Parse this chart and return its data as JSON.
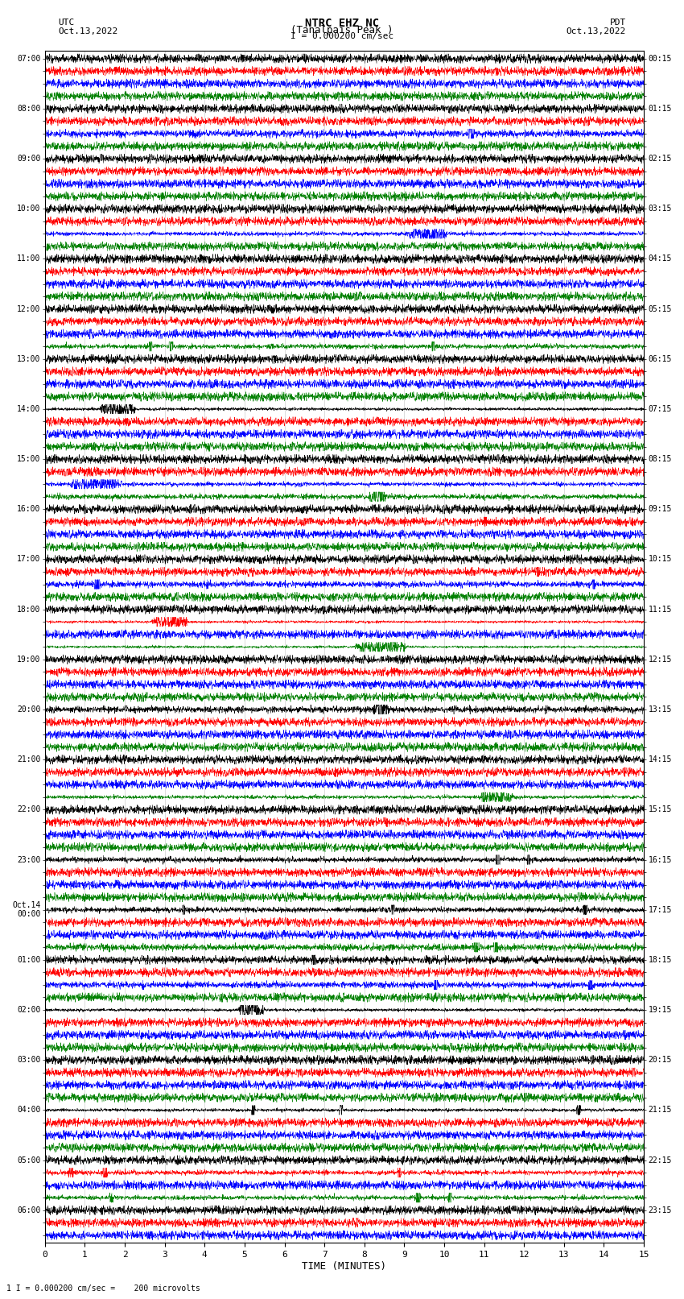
{
  "title_line1": "NTRC EHZ NC",
  "title_line2": "(Tanalpais Peak )",
  "scale_label": "I = 0.000200 cm/sec",
  "left_header": "UTC\nOct.13,2022",
  "right_header": "PDT\nOct.13,2022",
  "bottom_label": "TIME (MINUTES)",
  "bottom_note": "1 I = 0.000200 cm/sec =    200 microvolts",
  "colors": [
    "black",
    "red",
    "blue",
    "green"
  ],
  "x_min": 0,
  "x_max": 15,
  "x_ticks": [
    0,
    1,
    2,
    3,
    4,
    5,
    6,
    7,
    8,
    9,
    10,
    11,
    12,
    13,
    14,
    15
  ],
  "background": "white",
  "grid_color": "#bbbbbb",
  "left_utc_times": [
    "07:00",
    "",
    "",
    "",
    "08:00",
    "",
    "",
    "",
    "09:00",
    "",
    "",
    "",
    "10:00",
    "",
    "",
    "",
    "11:00",
    "",
    "",
    "",
    "12:00",
    "",
    "",
    "",
    "13:00",
    "",
    "",
    "",
    "14:00",
    "",
    "",
    "",
    "15:00",
    "",
    "",
    "",
    "16:00",
    "",
    "",
    "",
    "17:00",
    "",
    "",
    "",
    "18:00",
    "",
    "",
    "",
    "19:00",
    "",
    "",
    "",
    "20:00",
    "",
    "",
    "",
    "21:00",
    "",
    "",
    "",
    "22:00",
    "",
    "",
    "",
    "23:00",
    "",
    "",
    "",
    "Oct.14\n00:00",
    "",
    "",
    "",
    "01:00",
    "",
    "",
    "",
    "02:00",
    "",
    "",
    "",
    "03:00",
    "",
    "",
    "",
    "04:00",
    "",
    "",
    "",
    "05:00",
    "",
    "",
    "",
    "06:00",
    "",
    ""
  ],
  "right_pdt_times": [
    "00:15",
    "",
    "",
    "",
    "01:15",
    "",
    "",
    "",
    "02:15",
    "",
    "",
    "",
    "03:15",
    "",
    "",
    "",
    "04:15",
    "",
    "",
    "",
    "05:15",
    "",
    "",
    "",
    "06:15",
    "",
    "",
    "",
    "07:15",
    "",
    "",
    "",
    "08:15",
    "",
    "",
    "",
    "09:15",
    "",
    "",
    "",
    "10:15",
    "",
    "",
    "",
    "11:15",
    "",
    "",
    "",
    "12:15",
    "",
    "",
    "",
    "13:15",
    "",
    "",
    "",
    "14:15",
    "",
    "",
    "",
    "15:15",
    "",
    "",
    "",
    "16:15",
    "",
    "",
    "",
    "17:15",
    "",
    "",
    "",
    "18:15",
    "",
    "",
    "",
    "19:15",
    "",
    "",
    "",
    "20:15",
    "",
    "",
    "",
    "21:15",
    "",
    "",
    "",
    "22:15",
    "",
    "",
    "",
    "23:15",
    "",
    ""
  ],
  "noise_amplitude": 0.06,
  "seed": 12345
}
